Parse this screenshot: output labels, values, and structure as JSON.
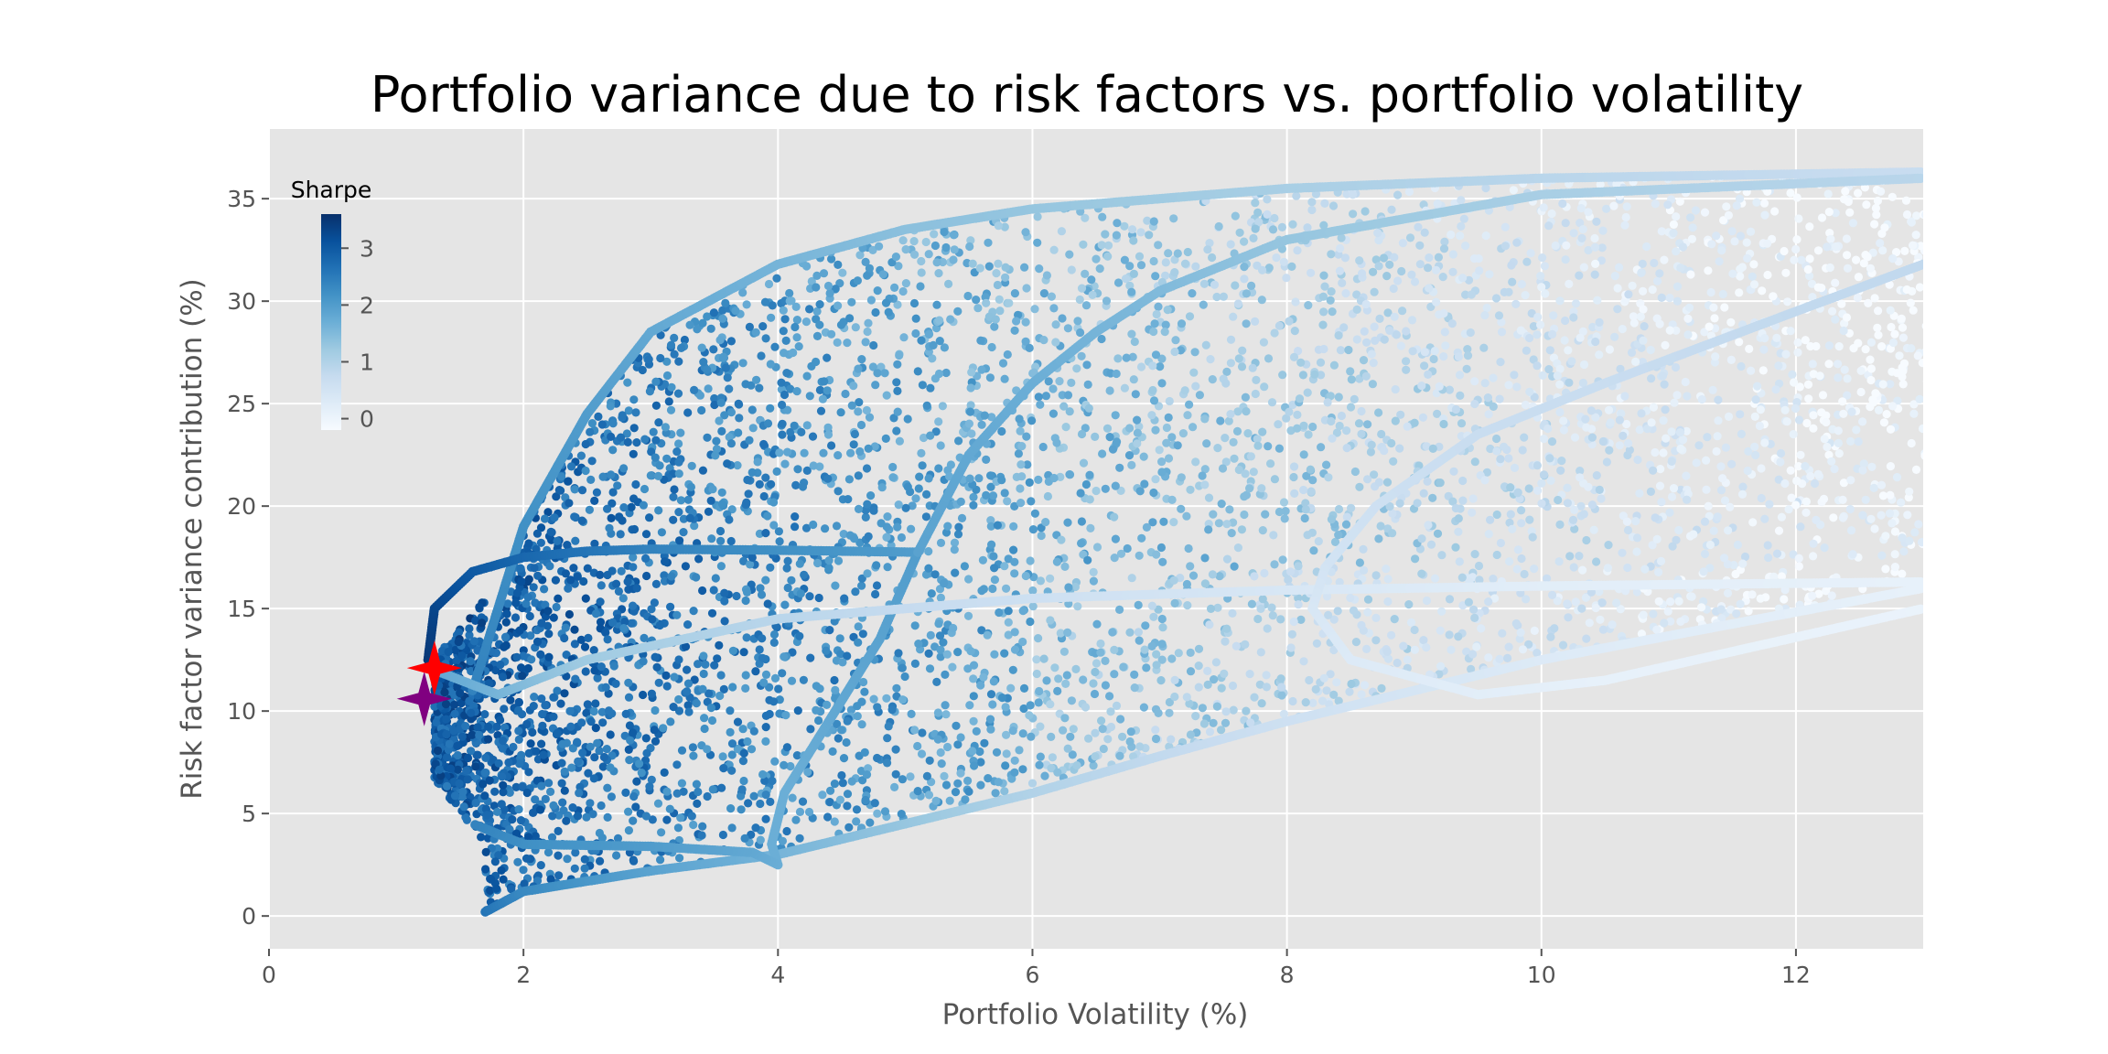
{
  "chart_data": {
    "type": "scatter",
    "title": "Portfolio variance due to risk factors vs. portfolio volatility",
    "xlabel": "Portfolio Volatility (%)",
    "ylabel": "Risk factor variance contribution (%)",
    "xlim": [
      0,
      13
    ],
    "ylim": [
      -1.6,
      38.4
    ],
    "xticks": [
      0,
      2,
      4,
      6,
      8,
      10,
      12
    ],
    "yticks": [
      0,
      5,
      10,
      15,
      20,
      25,
      30,
      35
    ],
    "grid": true,
    "background": "#e5e5e5",
    "grid_color": "#ffffff",
    "colormap": "Blues",
    "colorbar": {
      "title": "Sharpe",
      "ticks": [
        0,
        1,
        2,
        3
      ],
      "range": [
        -0.2,
        3.6
      ],
      "placement": "top-left"
    },
    "frontier_curves": [
      {
        "description": "upper band edge",
        "points": [
          [
            1.6,
            11
          ],
          [
            2.0,
            19
          ],
          [
            2.5,
            24.5
          ],
          [
            3.0,
            28.5
          ],
          [
            4.0,
            31.8
          ],
          [
            5.0,
            33.5
          ],
          [
            6.0,
            34.5
          ],
          [
            8.0,
            35.5
          ],
          [
            10.0,
            36.0
          ],
          [
            13.0,
            36.3
          ]
        ],
        "sharpe": [
          2.4,
          2.2,
          2.0,
          1.8,
          1.6,
          1.4,
          1.3,
          1.1,
          0.9,
          0.7
        ]
      },
      {
        "description": "lower band edge",
        "points": [
          [
            1.7,
            0.2
          ],
          [
            2.0,
            1.2
          ],
          [
            3.0,
            2.2
          ],
          [
            4.0,
            3.0
          ],
          [
            5.0,
            4.5
          ],
          [
            6.0,
            6.0
          ],
          [
            7.0,
            7.8
          ],
          [
            8.0,
            9.5
          ],
          [
            10.0,
            12.5
          ],
          [
            13.0,
            16.0
          ]
        ],
        "sharpe": [
          2.6,
          2.3,
          1.9,
          1.6,
          1.3,
          1.0,
          0.8,
          0.6,
          0.3,
          0.1
        ]
      },
      {
        "description": "dark efficient curve",
        "points": [
          [
            1.25,
            12.5
          ],
          [
            1.3,
            15.0
          ],
          [
            1.6,
            16.8
          ],
          [
            2.0,
            17.5
          ],
          [
            2.5,
            17.8
          ],
          [
            3.0,
            17.9
          ],
          [
            4.0,
            17.85
          ],
          [
            5.1,
            17.75
          ]
        ],
        "sharpe": [
          3.5,
          3.3,
          3.0,
          2.8,
          2.6,
          2.4,
          2.2,
          2.0
        ]
      },
      {
        "description": "s-curve",
        "points": [
          [
            5.1,
            17.75
          ],
          [
            4.8,
            13.5
          ],
          [
            4.4,
            9.5
          ],
          [
            4.05,
            6.0
          ],
          [
            3.95,
            3.5
          ],
          [
            4.0,
            2.5
          ],
          [
            3.8,
            3.1
          ],
          [
            3.0,
            3.4
          ],
          [
            2.0,
            3.5
          ],
          [
            1.6,
            4.5
          ]
        ],
        "sharpe": [
          2.0,
          1.9,
          1.8,
          1.7,
          1.7,
          1.7,
          1.8,
          2.0,
          2.2,
          2.4
        ]
      },
      {
        "description": "upper arc",
        "points": [
          [
            5.1,
            17.75
          ],
          [
            5.5,
            22.5
          ],
          [
            6.0,
            26.0
          ],
          [
            6.5,
            28.5
          ],
          [
            7.0,
            30.5
          ],
          [
            8.0,
            33.0
          ],
          [
            10.0,
            35.2
          ],
          [
            13.0,
            36.0
          ]
        ],
        "sharpe": [
          1.9,
          1.8,
          1.7,
          1.6,
          1.5,
          1.3,
          1.1,
          0.9
        ]
      },
      {
        "description": "lower flat band",
        "points": [
          [
            1.3,
            12.0
          ],
          [
            1.8,
            10.8
          ],
          [
            2.5,
            12.5
          ],
          [
            4.0,
            14.5
          ],
          [
            6.0,
            15.5
          ],
          [
            8.0,
            15.9
          ],
          [
            10.0,
            16.1
          ],
          [
            13.0,
            16.3
          ]
        ],
        "sharpe": [
          1.8,
          1.6,
          1.2,
          0.9,
          0.6,
          0.4,
          0.2,
          0.1
        ]
      },
      {
        "description": "right loop",
        "points": [
          [
            13.0,
            31.8
          ],
          [
            12.0,
            29.5
          ],
          [
            10.5,
            26.0
          ],
          [
            9.5,
            23.5
          ],
          [
            8.7,
            20.0
          ],
          [
            8.3,
            17.0
          ],
          [
            8.2,
            15.0
          ],
          [
            8.5,
            12.5
          ],
          [
            9.5,
            10.8
          ],
          [
            10.5,
            11.5
          ],
          [
            13.0,
            15.0
          ]
        ],
        "sharpe": [
          0.8,
          0.8,
          0.7,
          0.7,
          0.6,
          0.5,
          0.4,
          0.3,
          0.2,
          0.1,
          0.05
        ]
      }
    ],
    "special_points": [
      {
        "name": "max-sharpe",
        "x": 1.3,
        "y": 12.1,
        "color": "#ff0000",
        "marker": "star4"
      },
      {
        "name": "min-volatility",
        "x": 1.22,
        "y": 10.6,
        "color": "#800080",
        "marker": "star4"
      }
    ],
    "scatter_cloud": {
      "description": "random portfolios colored by Sharpe ratio, filling the band between upper and lower edges",
      "x_range": [
        1.2,
        13
      ],
      "y_range": [
        0.2,
        36.5
      ]
    }
  }
}
